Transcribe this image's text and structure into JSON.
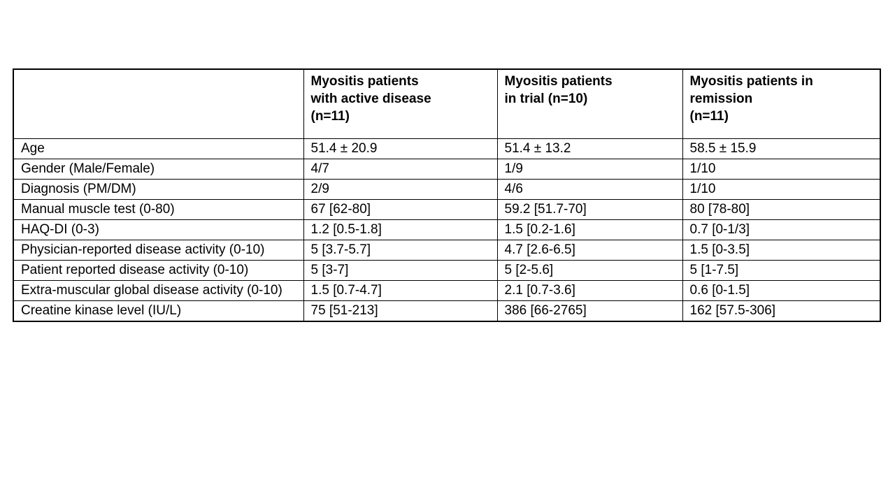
{
  "table": {
    "columns": [
      {
        "header": ""
      },
      {
        "header": "Myositis patients\nwith active disease\n(n=11)"
      },
      {
        "header": "Myositis patients\nin trial (n=10)"
      },
      {
        "header": "Myositis patients in\nremission\n(n=11)"
      }
    ],
    "rows": [
      {
        "label": "Age",
        "values": [
          "51.4 ± 20.9",
          "51.4 ± 13.2",
          "58.5 ± 15.9"
        ]
      },
      {
        "label": "Gender (Male/Female)",
        "values": [
          "4/7",
          "1/9",
          "1/10"
        ]
      },
      {
        "label": "Diagnosis (PM/DM)",
        "values": [
          "2/9",
          "4/6",
          "1/10"
        ]
      },
      {
        "label": "Manual muscle test (0-80)",
        "values": [
          "67 [62-80]",
          "59.2 [51.7-70]",
          "80 [78-80]"
        ]
      },
      {
        "label": "HAQ-DI (0-3)",
        "values": [
          "1.2 [0.5-1.8]",
          "1.5 [0.2-1.6]",
          "0.7 [0-1/3]"
        ]
      },
      {
        "label": "Physician-reported disease activity (0-10)",
        "values": [
          "5 [3.7-5.7]",
          "4.7 [2.6-6.5]",
          "1.5 [0-3.5]"
        ]
      },
      {
        "label": "Patient reported disease activity (0-10)",
        "values": [
          "5 [3-7]",
          "5 [2-5.6]",
          "5 [1-7.5]"
        ]
      },
      {
        "label": "Extra-muscular global disease activity (0-10)",
        "values": [
          "1.5 [0.7-4.7]",
          "2.1 [0.7-3.6]",
          "0.6 [0-1.5]"
        ]
      },
      {
        "label": "Creatine kinase level (IU/L)",
        "values": [
          "75 [51-213]",
          "386 [66-2765]",
          "162 [57.5-306]"
        ]
      }
    ]
  }
}
